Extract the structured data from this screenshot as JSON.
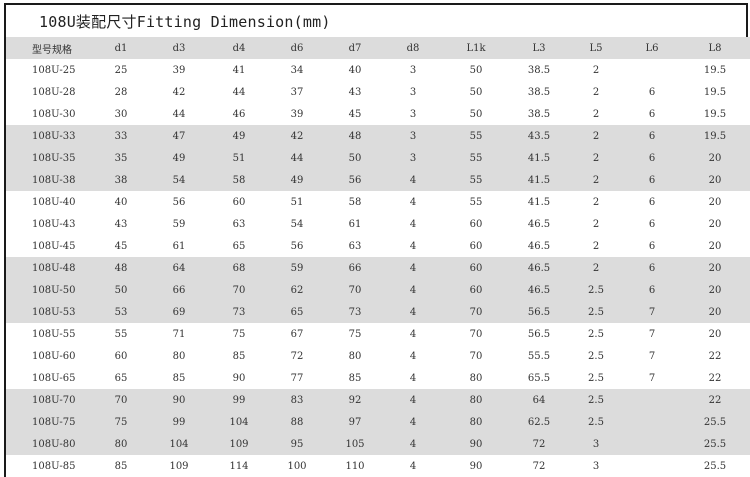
{
  "title": "108U装配尺寸Fitting Dimension(mm)",
  "columns": [
    "型号规格",
    "d1",
    "d3",
    "d4",
    "d6",
    "d7",
    "d8",
    "L1k",
    "L3",
    "L5",
    "L6",
    "L8"
  ],
  "rows": [
    [
      "108U-25",
      "25",
      "39",
      "41",
      "34",
      "40",
      "3",
      "50",
      "38.5",
      "2",
      "",
      "19.5"
    ],
    [
      "108U-28",
      "28",
      "42",
      "44",
      "37",
      "43",
      "3",
      "50",
      "38.5",
      "2",
      "6",
      "19.5"
    ],
    [
      "108U-30",
      "30",
      "44",
      "46",
      "39",
      "45",
      "3",
      "50",
      "38.5",
      "2",
      "6",
      "19.5"
    ],
    [
      "108U-33",
      "33",
      "47",
      "49",
      "42",
      "48",
      "3",
      "55",
      "43.5",
      "2",
      "6",
      "19.5"
    ],
    [
      "108U-35",
      "35",
      "49",
      "51",
      "44",
      "50",
      "3",
      "55",
      "41.5",
      "2",
      "6",
      "20"
    ],
    [
      "108U-38",
      "38",
      "54",
      "58",
      "49",
      "56",
      "4",
      "55",
      "41.5",
      "2",
      "6",
      "20"
    ],
    [
      "108U-40",
      "40",
      "56",
      "60",
      "51",
      "58",
      "4",
      "55",
      "41.5",
      "2",
      "6",
      "20"
    ],
    [
      "108U-43",
      "43",
      "59",
      "63",
      "54",
      "61",
      "4",
      "60",
      "46.5",
      "2",
      "6",
      "20"
    ],
    [
      "108U-45",
      "45",
      "61",
      "65",
      "56",
      "63",
      "4",
      "60",
      "46.5",
      "2",
      "6",
      "20"
    ],
    [
      "108U-48",
      "48",
      "64",
      "68",
      "59",
      "66",
      "4",
      "60",
      "46.5",
      "2",
      "6",
      "20"
    ],
    [
      "108U-50",
      "50",
      "66",
      "70",
      "62",
      "70",
      "4",
      "60",
      "46.5",
      "2.5",
      "6",
      "20"
    ],
    [
      "108U-53",
      "53",
      "69",
      "73",
      "65",
      "73",
      "4",
      "70",
      "56.5",
      "2.5",
      "7",
      "20"
    ],
    [
      "108U-55",
      "55",
      "71",
      "75",
      "67",
      "75",
      "4",
      "70",
      "56.5",
      "2.5",
      "7",
      "20"
    ],
    [
      "108U-60",
      "60",
      "80",
      "85",
      "72",
      "80",
      "4",
      "70",
      "55.5",
      "2.5",
      "7",
      "22"
    ],
    [
      "108U-65",
      "65",
      "85",
      "90",
      "77",
      "85",
      "4",
      "80",
      "65.5",
      "2.5",
      "7",
      "22"
    ],
    [
      "108U-70",
      "70",
      "90",
      "99",
      "83",
      "92",
      "4",
      "80",
      "64",
      "2.5",
      "",
      "22"
    ],
    [
      "108U-75",
      "75",
      "99",
      "104",
      "88",
      "97",
      "4",
      "80",
      "62.5",
      "2.5",
      "",
      "25.5"
    ],
    [
      "108U-80",
      "80",
      "104",
      "109",
      "95",
      "105",
      "4",
      "90",
      "72",
      "3",
      "",
      "25.5"
    ],
    [
      "108U-85",
      "85",
      "109",
      "114",
      "100",
      "110",
      "4",
      "90",
      "72",
      "3",
      "",
      "25.5"
    ]
  ],
  "colors": {
    "band": "#dcdcdc",
    "border": "#1a1a1a",
    "text": "#333333"
  }
}
